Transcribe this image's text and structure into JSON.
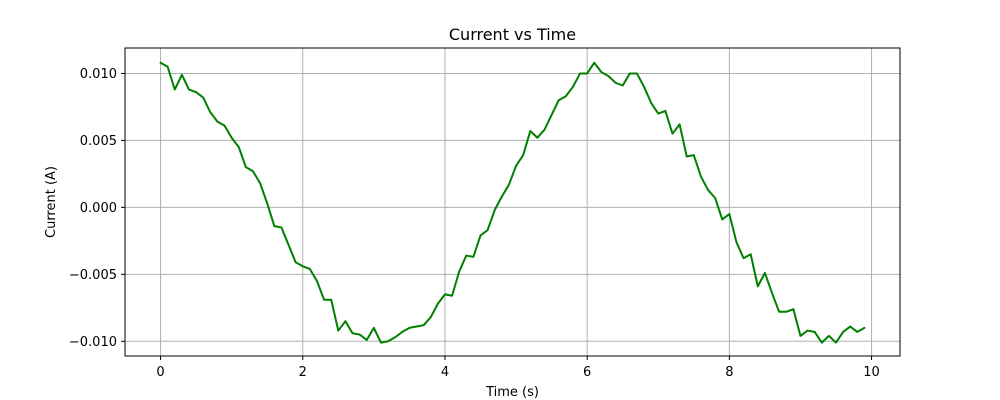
{
  "chart_data": {
    "type": "line",
    "title": "Current vs Time",
    "xlabel": "Time (s)",
    "ylabel": "Current (A)",
    "xlim": [
      -0.5,
      10.4
    ],
    "ylim": [
      -0.0111,
      0.0119
    ],
    "xticks": [
      0,
      2,
      4,
      6,
      8,
      10
    ],
    "xtick_labels": [
      "0",
      "2",
      "4",
      "6",
      "8",
      "10"
    ],
    "yticks": [
      0.01,
      0.005,
      0.0,
      -0.005,
      -0.01
    ],
    "ytick_labels": [
      "0.010",
      "0.005",
      "0.000",
      "−0.005",
      "−0.010"
    ],
    "grid": true,
    "legend": false,
    "colors": {
      "line": "#008000",
      "grid": "#b0b0b0",
      "axes": "#000000"
    },
    "series": [
      {
        "x": [
          0.0,
          0.1,
          0.2,
          0.3,
          0.4,
          0.5,
          0.6,
          0.7,
          0.8,
          0.9,
          1.0,
          1.1,
          1.2,
          1.3,
          1.4,
          1.5,
          1.6,
          1.7,
          1.8,
          1.9,
          2.0,
          2.1,
          2.2,
          2.3,
          2.4,
          2.5,
          2.6,
          2.7,
          2.8,
          2.9,
          3.0,
          3.1,
          3.2,
          3.3,
          3.4,
          3.5,
          3.6,
          3.7,
          3.8,
          3.9,
          4.0,
          4.1,
          4.2,
          4.3,
          4.4,
          4.5,
          4.6,
          4.7,
          4.8,
          4.9,
          5.0,
          5.1,
          5.2,
          5.3,
          5.4,
          5.5,
          5.6,
          5.7,
          5.8,
          5.9,
          6.0,
          6.1,
          6.2,
          6.3,
          6.4,
          6.5,
          6.6,
          6.7,
          6.8,
          6.9,
          7.0,
          7.1,
          7.2,
          7.3,
          7.4,
          7.5,
          7.6,
          7.7,
          7.8,
          7.9,
          8.0,
          8.1,
          8.2,
          8.3,
          8.4,
          8.5,
          8.6,
          8.7,
          8.8,
          8.9,
          9.0,
          9.1,
          9.2,
          9.3,
          9.4,
          9.5,
          9.6,
          9.7,
          9.8,
          9.9
        ],
        "values": [
          0.0108,
          0.0105,
          0.0088,
          0.0099,
          0.0088,
          0.0086,
          0.0082,
          0.0071,
          0.0064,
          0.0061,
          0.0052,
          0.0045,
          0.003,
          0.0027,
          0.0018,
          0.0003,
          -0.0014,
          -0.0015,
          -0.0028,
          -0.0041,
          -0.0044,
          -0.0046,
          -0.0055,
          -0.0069,
          -0.0069,
          -0.0092,
          -0.0085,
          -0.0094,
          -0.0095,
          -0.0099,
          -0.009,
          -0.0101,
          -0.01,
          -0.0097,
          -0.0093,
          -0.009,
          -0.0089,
          -0.0088,
          -0.0082,
          -0.0072,
          -0.0065,
          -0.0066,
          -0.0048,
          -0.0036,
          -0.0037,
          -0.0021,
          -0.0017,
          -0.0002,
          0.0008,
          0.0017,
          0.0031,
          0.0039,
          0.0057,
          0.0052,
          0.0058,
          0.0069,
          0.008,
          0.0083,
          0.009,
          0.01,
          0.01,
          0.0108,
          0.0101,
          0.0098,
          0.0093,
          0.0091,
          0.01,
          0.01,
          0.009,
          0.0078,
          0.007,
          0.0072,
          0.0055,
          0.0062,
          0.0038,
          0.0039,
          0.0023,
          0.0013,
          0.0007,
          -0.0009,
          -0.0005,
          -0.0026,
          -0.0038,
          -0.0035,
          -0.0059,
          -0.0049,
          -0.0064,
          -0.0078,
          -0.0078,
          -0.0076,
          -0.0096,
          -0.0092,
          -0.0093,
          -0.0101,
          -0.0096,
          -0.0101,
          -0.0093,
          -0.0089,
          -0.0093,
          -0.009
        ]
      }
    ]
  }
}
